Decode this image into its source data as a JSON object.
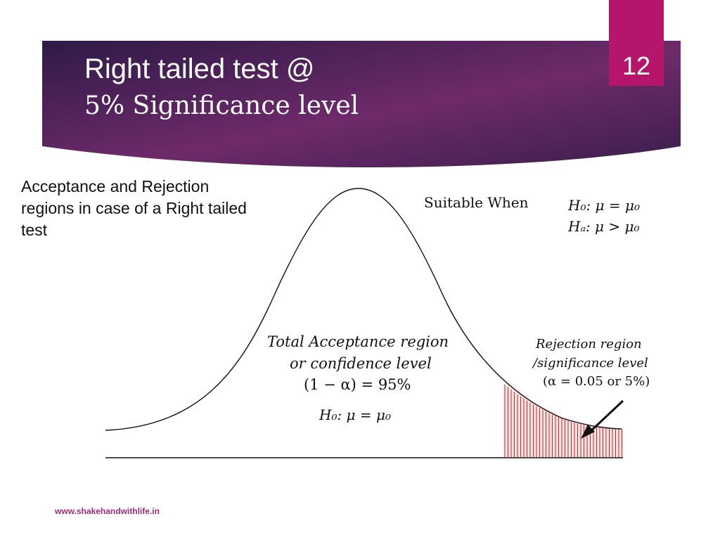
{
  "slide": {
    "title_line1": "Right tailed test @",
    "title_line2": "5% Significance level",
    "number": "12",
    "footer": "www.shakehandwithlife.in"
  },
  "description": "Acceptance and Rejection regions in case of a Right tailed test",
  "suitable": {
    "label": "Suitable When",
    "h0": "H₀: μ = μ₀",
    "ha": "Hₐ: μ > μ₀"
  },
  "acceptance": {
    "line1": "Total Acceptance region",
    "line2": "or confidence level",
    "line3": "(1 − α)   =   95%",
    "h0": "H₀: μ = μ₀"
  },
  "rejection": {
    "line1": "Rejection region",
    "line2": "/significance level",
    "line3": "(α  = 0.05 or  5%)"
  },
  "colors": {
    "banner_dark": "#2e1a47",
    "banner_purple": "#6e2a6a",
    "slide_number_bg": "#b5156a",
    "rejection_hatch": "#c0282c"
  }
}
